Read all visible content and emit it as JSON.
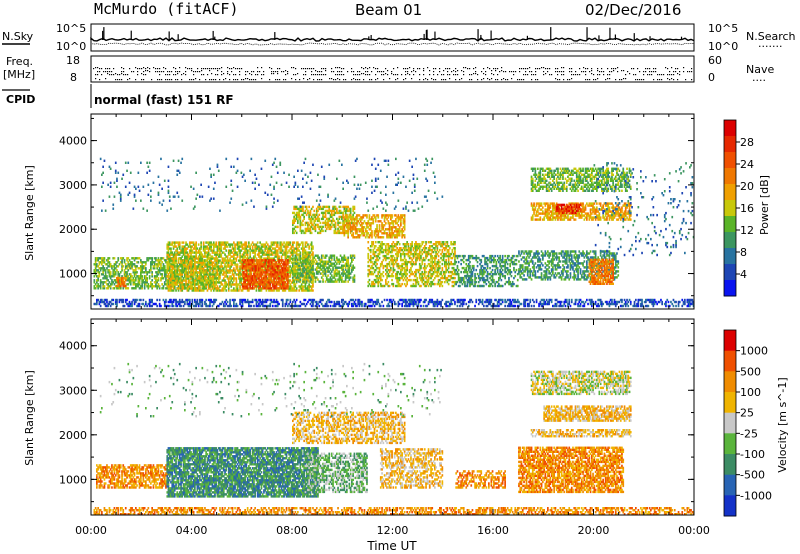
{
  "header": {
    "station": "McMurdo (fitACF)",
    "beam": "Beam 01",
    "date": "02/Dec/2016"
  },
  "panel_labels": {
    "nsky": "N.Sky",
    "nsearch": "N.Search",
    "nsearch_dots": "·······",
    "freq": "Freq.",
    "mhz": "[MHz]",
    "nave": "Nave",
    "nave_dots": "····",
    "cpid": "CPID",
    "cpid_text": "normal (fast) 151 RF",
    "noise_left_ticks": [
      "10^5",
      "10^0"
    ],
    "noise_right_ticks": [
      "10^5",
      "10^0"
    ],
    "freq_ticks": [
      "18",
      "8"
    ],
    "nave_ticks": [
      "60",
      "0"
    ]
  },
  "chart_data": [
    {
      "type": "heatmap",
      "title": "",
      "xlabel": "",
      "ylabel": "Slant Range [km]",
      "xlim": [
        0,
        24
      ],
      "ylim": [
        200,
        4600
      ],
      "yticks": [
        "1000",
        "2000",
        "3000",
        "4000"
      ],
      "colorbar": {
        "label": "Power [dB]",
        "ticks": [
          "4",
          "8",
          "12",
          "16",
          "20",
          "24",
          "28"
        ],
        "colors": [
          "#0a14f0",
          "#1e46b4",
          "#2873a0",
          "#3c9660",
          "#5ab428",
          "#c8c80a",
          "#f0a000",
          "#f07800",
          "#f05000",
          "#e62800",
          "#dc0000"
        ]
      },
      "regions": [
        {
          "t0": 0.1,
          "t1": 24.0,
          "r0": 250,
          "r1": 420,
          "level": 1,
          "density": 0.5
        },
        {
          "t0": 0.1,
          "t1": 5.0,
          "r0": 650,
          "r1": 1350,
          "level": 4,
          "density": 0.55
        },
        {
          "t0": 1.0,
          "t1": 1.4,
          "r0": 700,
          "r1": 900,
          "level": 7,
          "density": 0.7
        },
        {
          "t0": 3.0,
          "t1": 8.8,
          "r0": 600,
          "r1": 1700,
          "level": 5,
          "density": 0.65
        },
        {
          "t0": 6.0,
          "t1": 7.8,
          "r0": 650,
          "r1": 1300,
          "level": 8,
          "density": 0.75
        },
        {
          "t0": 8.0,
          "t1": 10.5,
          "r0": 800,
          "r1": 1400,
          "level": 4,
          "density": 0.55
        },
        {
          "t0": 8.0,
          "t1": 10.5,
          "r0": 1900,
          "r1": 2500,
          "level": 5,
          "density": 0.55
        },
        {
          "t0": 10.0,
          "t1": 12.5,
          "r0": 1800,
          "r1": 2300,
          "level": 6,
          "density": 0.55
        },
        {
          "t0": 11.0,
          "t1": 14.5,
          "r0": 700,
          "r1": 1700,
          "level": 5,
          "density": 0.5
        },
        {
          "t0": 14.5,
          "t1": 17.0,
          "r0": 700,
          "r1": 1400,
          "level": 3,
          "density": 0.45
        },
        {
          "t0": 17.0,
          "t1": 21.0,
          "r0": 850,
          "r1": 1500,
          "level": 3,
          "density": 0.5
        },
        {
          "t0": 19.8,
          "t1": 20.8,
          "r0": 750,
          "r1": 1300,
          "level": 7,
          "density": 0.7
        },
        {
          "t0": 17.5,
          "t1": 21.5,
          "r0": 2200,
          "r1": 2600,
          "level": 6,
          "density": 0.6
        },
        {
          "t0": 18.5,
          "t1": 19.5,
          "r0": 2350,
          "r1": 2550,
          "level": 9,
          "density": 0.7
        },
        {
          "t0": 17.5,
          "t1": 21.5,
          "r0": 2850,
          "r1": 3350,
          "level": 4,
          "density": 0.55
        },
        {
          "t0": 0.3,
          "t1": 14.0,
          "r0": 2400,
          "r1": 3600,
          "level": 2,
          "density": 0.04
        },
        {
          "t0": 20.0,
          "t1": 24.0,
          "r0": 1400,
          "r1": 3500,
          "level": 2,
          "density": 0.05
        }
      ]
    },
    {
      "type": "heatmap",
      "title": "",
      "xlabel": "Time UT",
      "ylabel": "Slant Range [km]",
      "xlim": [
        0,
        24
      ],
      "ylim": [
        200,
        4600
      ],
      "xticks": [
        "00:00",
        "04:00",
        "08:00",
        "12:00",
        "16:00",
        "20:00",
        "00:00"
      ],
      "yticks": [
        "1000",
        "2000",
        "3000",
        "4000"
      ],
      "colorbar": {
        "label": "Velocity [m s^-1]",
        "ticks": [
          "1000",
          "500",
          "100",
          "25",
          "-25",
          "-100",
          "-500",
          "-1000"
        ],
        "colors": [
          "#1432c8",
          "#2864b4",
          "#3c8c64",
          "#5ab43c",
          "#c8c8c8",
          "#f0b400",
          "#f08c00",
          "#f05000",
          "#dc0000"
        ]
      },
      "regions": [
        {
          "t0": 0.1,
          "t1": 24.0,
          "r0": 200,
          "r1": 380,
          "level": 6,
          "density": 0.5
        },
        {
          "t0": 0.2,
          "t1": 3.0,
          "r0": 800,
          "r1": 1300,
          "level": 6,
          "density": 0.6
        },
        {
          "t0": 3.0,
          "t1": 9.0,
          "r0": 600,
          "r1": 1700,
          "level": 2,
          "density": 0.8
        },
        {
          "t0": 8.5,
          "t1": 11.0,
          "r0": 700,
          "r1": 1600,
          "level": 3,
          "density": 0.55
        },
        {
          "t0": 8.0,
          "t1": 12.5,
          "r0": 1800,
          "r1": 2500,
          "level": 5,
          "density": 0.5
        },
        {
          "t0": 11.5,
          "t1": 14.0,
          "r0": 800,
          "r1": 1700,
          "level": 5,
          "density": 0.5
        },
        {
          "t0": 14.5,
          "t1": 16.5,
          "r0": 800,
          "r1": 1200,
          "level": 6,
          "density": 0.5
        },
        {
          "t0": 17.0,
          "t1": 21.2,
          "r0": 700,
          "r1": 1700,
          "level": 6,
          "density": 0.7
        },
        {
          "t0": 17.5,
          "t1": 21.5,
          "r0": 1950,
          "r1": 2100,
          "level": 5,
          "density": 0.6
        },
        {
          "t0": 18.0,
          "t1": 21.5,
          "r0": 2300,
          "r1": 2650,
          "level": 5,
          "density": 0.7
        },
        {
          "t0": 17.5,
          "t1": 21.5,
          "r0": 2900,
          "r1": 3400,
          "level": 4,
          "density": 0.6
        },
        {
          "t0": 0.3,
          "t1": 14.0,
          "r0": 2400,
          "r1": 3600,
          "level": 3,
          "density": 0.04
        }
      ]
    }
  ]
}
